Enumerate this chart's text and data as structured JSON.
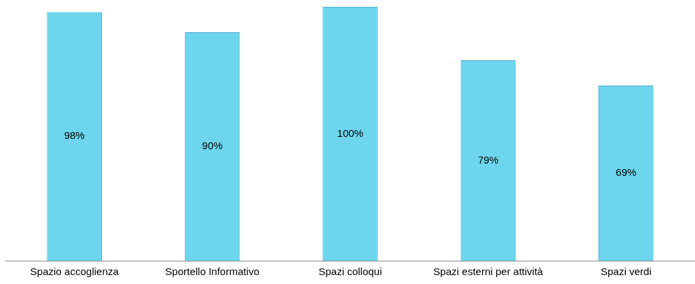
{
  "chart_data": {
    "type": "bar",
    "categories": [
      "Spazio accoglienza",
      "Sportello Informativo",
      "Spazi colloqui",
      "Spazi esterni per attività",
      "Spazi verdi"
    ],
    "values": [
      98,
      90,
      100,
      79,
      69
    ],
    "value_labels": [
      "98%",
      "90%",
      "100%",
      "79%",
      "69%"
    ],
    "color": "#6dd5ed",
    "grid": false,
    "legend": false
  }
}
